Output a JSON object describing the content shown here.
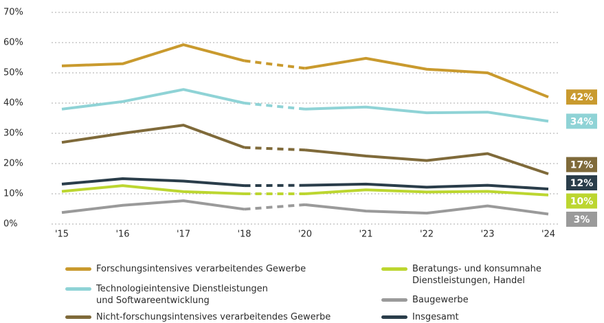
{
  "chart_data": {
    "type": "line",
    "categories": [
      "'15",
      "'16",
      "'17",
      "'18",
      "'20",
      "'21",
      "'22",
      "'23",
      "'24"
    ],
    "ylim": [
      0,
      70
    ],
    "yticks": [
      {
        "value": 0,
        "label": "0%"
      },
      {
        "value": 10,
        "label": "10%"
      },
      {
        "value": 20,
        "label": "20%"
      },
      {
        "value": 30,
        "label": "30%"
      },
      {
        "value": 40,
        "label": "40%"
      },
      {
        "value": 50,
        "label": "50%"
      },
      {
        "value": 60,
        "label": "60%"
      },
      {
        "value": 70,
        "label": "70%"
      }
    ],
    "grid": true,
    "dashed_segments": [
      [
        3,
        4
      ]
    ],
    "series": [
      {
        "name": "Forschungsintensives verarbeitendes Gewerbe",
        "color": "#c99a2e",
        "values": [
          52.3,
          53,
          59.3,
          54,
          51.5,
          54.8,
          51.2,
          50,
          42
        ],
        "value_labels": [
          null,
          null,
          null,
          null,
          null,
          null,
          null,
          null,
          "42%"
        ]
      },
      {
        "name": "Technologieintensive Dienstleistungen\nund Softwareentwicklung",
        "color": "#8fd3d6",
        "values": [
          38,
          40.5,
          44.5,
          40,
          38,
          38.7,
          36.8,
          37,
          34
        ],
        "value_labels": [
          null,
          null,
          null,
          null,
          null,
          null,
          null,
          null,
          "34%"
        ]
      },
      {
        "name": "Nicht-forschungsintensives verarbeitendes Gewerbe",
        "color": "#7f6a3a",
        "values": [
          27,
          30,
          32.7,
          25.3,
          24.5,
          22.5,
          21,
          23.3,
          16.6
        ],
        "value_labels": [
          null,
          null,
          null,
          null,
          null,
          null,
          null,
          null,
          "17%"
        ]
      },
      {
        "name": "Beratungs- und konsumnahe\nDienstleistungen, Handel",
        "color": "#bcd630",
        "values": [
          10.8,
          12.7,
          10.7,
          10,
          10,
          11.3,
          10.6,
          10.8,
          9.6
        ],
        "value_labels": [
          null,
          null,
          null,
          null,
          null,
          null,
          null,
          null,
          "10%"
        ]
      },
      {
        "name": "Baugewerbe",
        "color": "#9a9a9a",
        "values": [
          3.8,
          6.2,
          7.7,
          4.9,
          6.4,
          4.3,
          3.6,
          6,
          3.3
        ],
        "value_labels": [
          null,
          null,
          null,
          null,
          null,
          null,
          null,
          null,
          "3%"
        ]
      },
      {
        "name": "Insgesamt",
        "color": "#2a3d4a",
        "values": [
          13.2,
          15,
          14.2,
          12.7,
          12.8,
          13.2,
          12.2,
          12.8,
          11.6
        ],
        "value_labels": [
          null,
          null,
          null,
          null,
          null,
          null,
          null,
          null,
          "12%"
        ]
      }
    ]
  }
}
